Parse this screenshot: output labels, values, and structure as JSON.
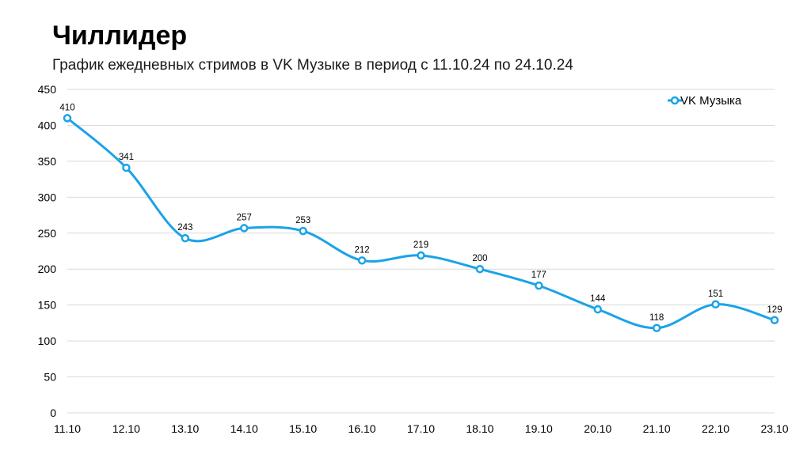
{
  "header": {
    "title": "Чиллидер",
    "subtitle": "График ежедневных стримов в VK Музыке в период с 11.10.24 по 24.10.24"
  },
  "chart_data": {
    "type": "line",
    "smooth": true,
    "categories": [
      "11.10",
      "12.10",
      "13.10",
      "14.10",
      "15.10",
      "16.10",
      "17.10",
      "18.10",
      "19.10",
      "20.10",
      "21.10",
      "22.10",
      "23.10"
    ],
    "series": [
      {
        "name": "VK Музыка",
        "values": [
          410,
          341,
          243,
          257,
          253,
          212,
          219,
          200,
          177,
          144,
          118,
          151,
          129
        ],
        "color": "#1aa3e8"
      }
    ],
    "ylim": [
      0,
      450
    ],
    "yticks": [
      0,
      50,
      100,
      150,
      200,
      250,
      300,
      350,
      400,
      450
    ],
    "grid": true,
    "grid_color": "#d9d9d9",
    "data_labels": true,
    "legend_position": "top-right"
  }
}
